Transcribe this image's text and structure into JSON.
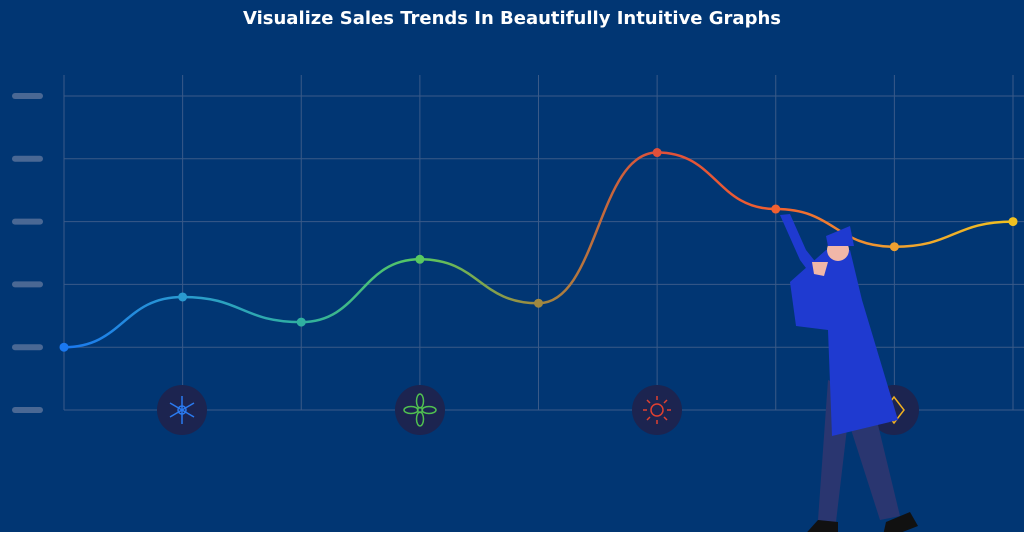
{
  "chart_data": {
    "type": "line",
    "title": "Visualize Sales Trends In Beautifully Intuitive Graphs",
    "categories": [
      null,
      null,
      null,
      null,
      null,
      null,
      null,
      null,
      null
    ],
    "series": [
      {
        "colors": [
          "#1a78f0",
          "#2a9ad0",
          "#30b0a0",
          "#58c860",
          "#a08840",
          "#e0503a",
          "#f06030",
          "#f0a030",
          "#f0c020"
        ],
        "values": [
          1.0,
          1.8,
          1.4,
          2.4,
          1.7,
          4.1,
          3.2,
          2.6,
          3.0
        ]
      }
    ],
    "ylim": [
      0,
      5
    ],
    "yticks": [
      0,
      1,
      2,
      3,
      4,
      5
    ],
    "grid": true
  }
}
